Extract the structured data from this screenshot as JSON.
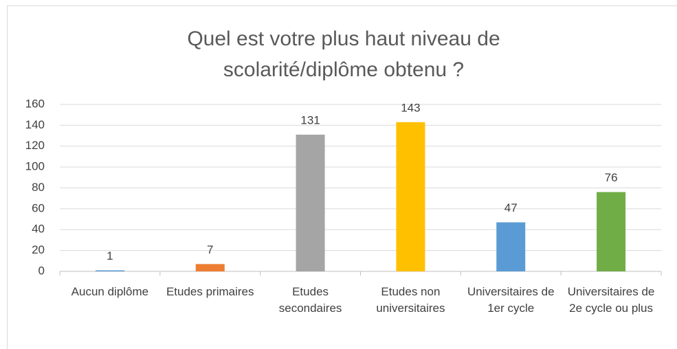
{
  "chart_data": {
    "type": "bar",
    "title": "Quel est votre plus haut niveau de scolarité/diplôme obtenu ?",
    "categories": [
      "Aucun diplôme",
      "Etudes primaires",
      "Etudes secondaires",
      "Etudes non universitaires",
      "Universitaires de 1er cycle",
      "Universitaires de 2e cycle ou plus"
    ],
    "values": [
      1,
      7,
      131,
      143,
      47,
      76
    ],
    "colors": [
      "#5b9bd5",
      "#ed7d31",
      "#a5a5a5",
      "#ffc000",
      "#5b9bd5",
      "#70ad47"
    ],
    "ylim": [
      0,
      160
    ],
    "yticks": [
      0,
      20,
      40,
      60,
      80,
      100,
      120,
      140,
      160
    ],
    "grid": true
  }
}
